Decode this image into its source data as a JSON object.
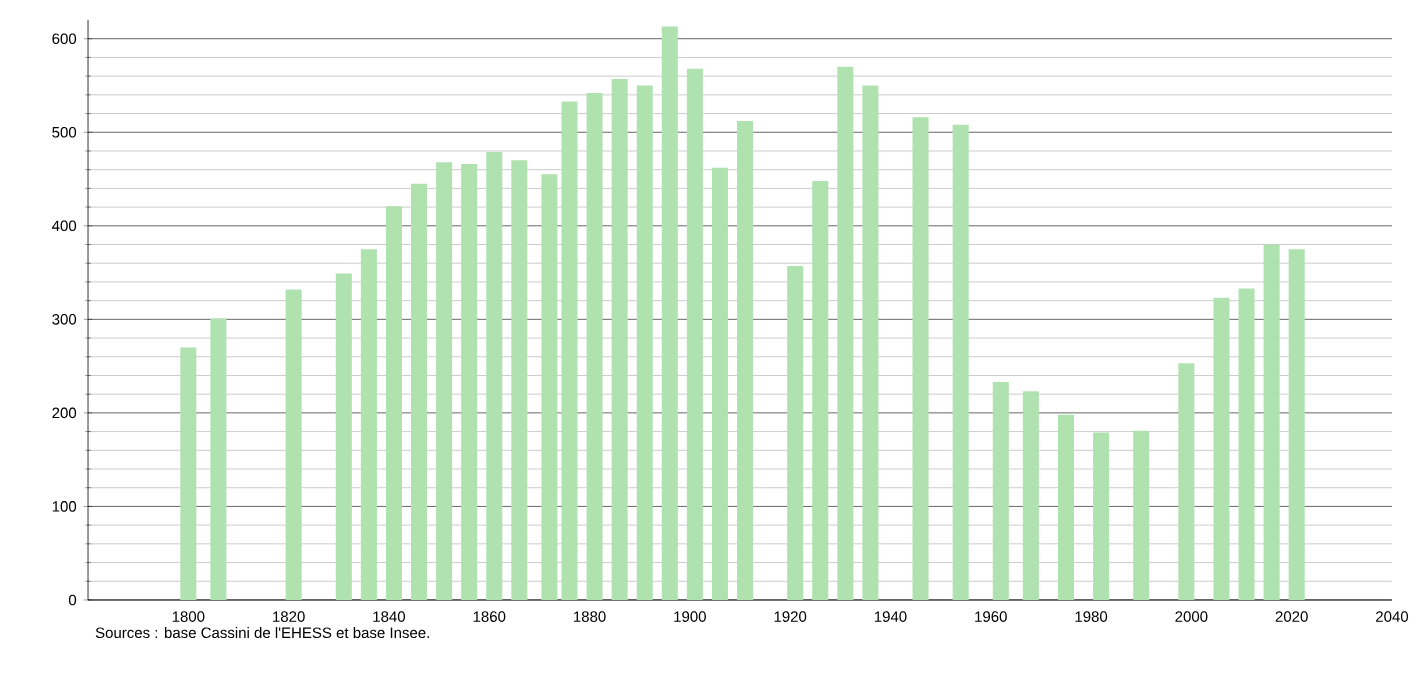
{
  "chart_data": {
    "type": "bar",
    "color": "#b0e2b0",
    "x": [
      1800,
      1806,
      1821,
      1831,
      1836,
      1841,
      1846,
      1851,
      1856,
      1861,
      1866,
      1872,
      1876,
      1881,
      1886,
      1891,
      1896,
      1901,
      1906,
      1911,
      1921,
      1926,
      1931,
      1936,
      1946,
      1954,
      1962,
      1968,
      1975,
      1982,
      1990,
      1999,
      2006,
      2011,
      2016,
      2021
    ],
    "values": [
      270,
      301,
      332,
      349,
      375,
      421,
      445,
      468,
      466,
      479,
      470,
      455,
      533,
      542,
      557,
      550,
      613,
      568,
      462,
      512,
      357,
      448,
      570,
      550,
      516,
      508,
      233,
      223,
      198,
      179,
      181,
      253,
      323,
      333,
      380,
      375
    ],
    "xlim": [
      1780,
      2040
    ],
    "xticks": [
      1800,
      1820,
      1840,
      1860,
      1880,
      1900,
      1920,
      1940,
      1960,
      1980,
      2000,
      2020,
      2040
    ],
    "ylim": [
      0,
      620
    ],
    "yticks": [
      0,
      100,
      200,
      300,
      400,
      500,
      600
    ],
    "grid": "y",
    "annotations": [
      "Sources : base Cassini de l'EHESS et base Insee."
    ]
  }
}
